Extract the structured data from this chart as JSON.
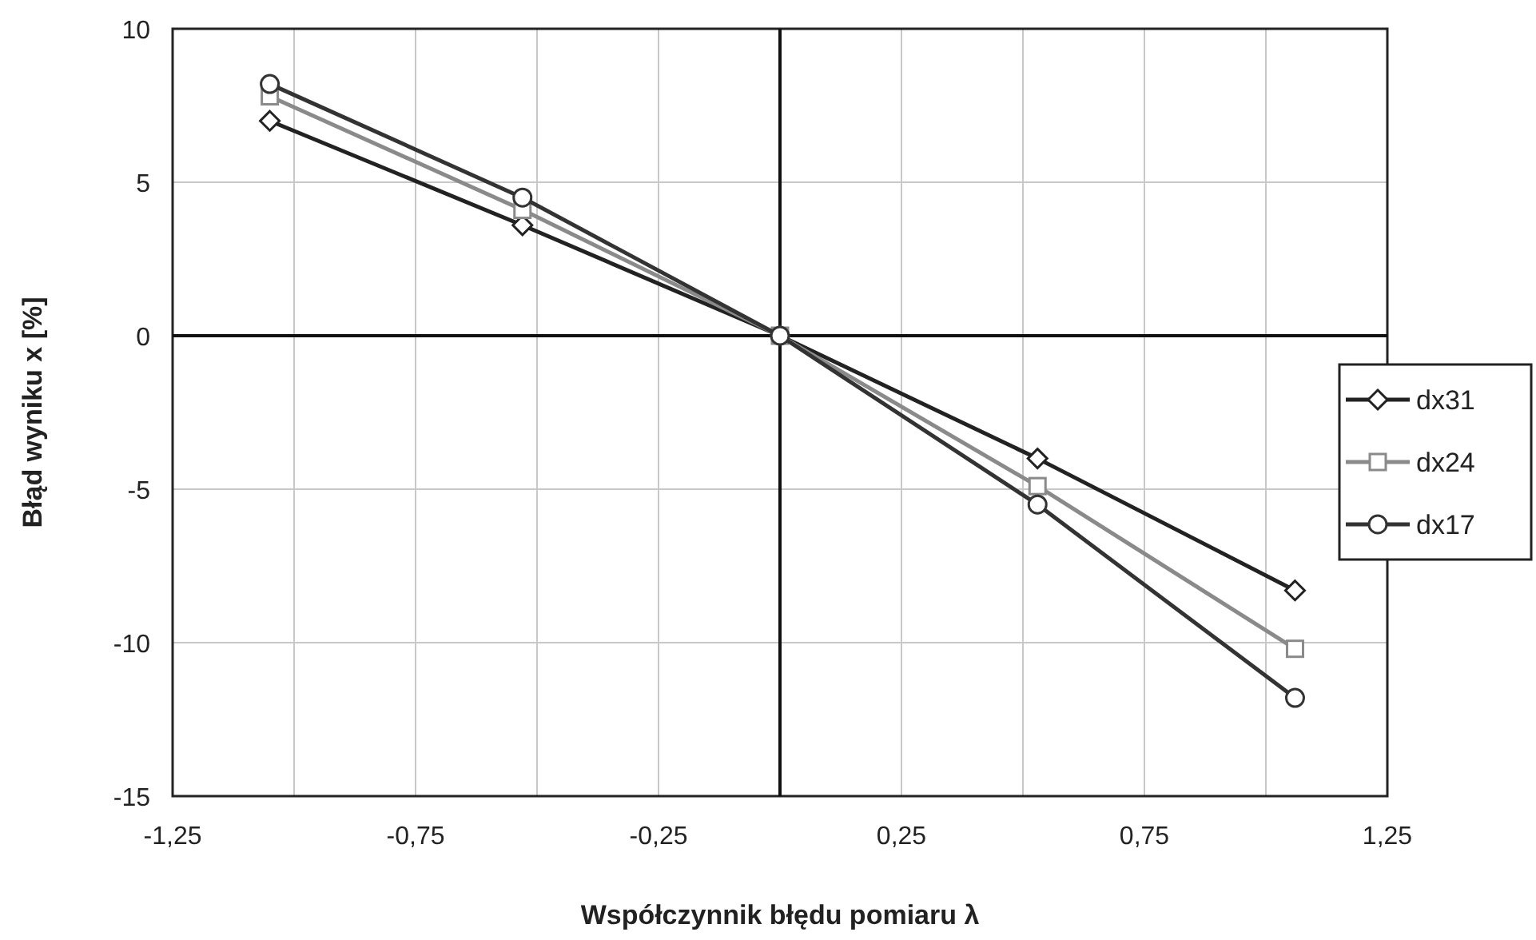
{
  "chart_data": {
    "type": "line",
    "xlabel": "Współczynnik błędu pomiaru λ",
    "ylabel": "Błąd wyniku  x [%]",
    "xlim": [
      -1.25,
      1.25
    ],
    "xticks": [
      {
        "value": -1.25,
        "label": "-1,25"
      },
      {
        "value": -0.75,
        "label": "-0,75"
      },
      {
        "value": -0.25,
        "label": "-0,25"
      },
      {
        "value": 0.25,
        "label": "0,25"
      },
      {
        "value": 0.75,
        "label": "0,75"
      },
      {
        "value": 1.25,
        "label": "1,25"
      }
    ],
    "ylim": [
      -15,
      10
    ],
    "yticks": [
      -15,
      -10,
      -5,
      0,
      5,
      10
    ],
    "grid": true,
    "legend": "right",
    "x": [
      -1.05,
      -0.53,
      0,
      0.53,
      1.06
    ],
    "series": [
      {
        "name": "dx31",
        "color": "#222222",
        "marker": "diamond",
        "values": [
          7.0,
          3.6,
          0,
          -4.0,
          -8.3
        ]
      },
      {
        "name": "dx24",
        "color": "#8a8a8a",
        "marker": "square",
        "values": [
          7.8,
          4.1,
          0,
          -4.9,
          -10.2
        ]
      },
      {
        "name": "dx17",
        "color": "#333333",
        "marker": "circle",
        "values": [
          8.2,
          4.5,
          0,
          -5.5,
          -11.8
        ]
      }
    ]
  }
}
